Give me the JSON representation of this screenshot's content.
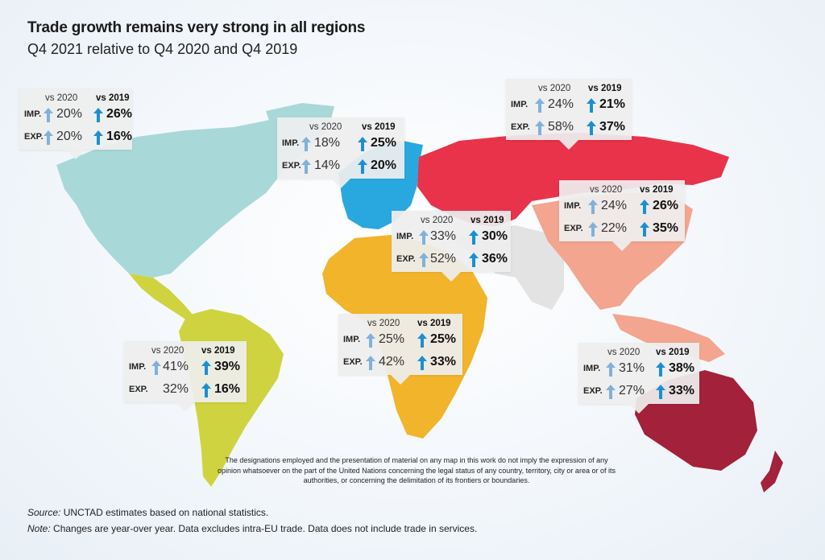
{
  "title": "Trade growth remains very strong in all regions",
  "subtitle": "Q4 2021 relative to Q4 2020 and Q4 2019",
  "headers": {
    "vs2020": "vs 2020",
    "vs2019": "vs 2019"
  },
  "row_labels": {
    "imp": "IMP.",
    "exp": "EXP."
  },
  "colors": {
    "north_america": "#a9d8d9",
    "latin_america": "#cfd33f",
    "europe": "#29a8e0",
    "russia_cis": "#e8334a",
    "africa": "#f2b42b",
    "east_asia": "#f3a58f",
    "oceania": "#a3213a",
    "other": "#e3e3e3",
    "arrow_light": "#7fb1dc",
    "arrow_dark": "#1b8fd2"
  },
  "regions": [
    {
      "id": "north-america",
      "imp_2020": "20%",
      "imp_2019": "26%",
      "exp_2020": "20%",
      "exp_2019": "16%"
    },
    {
      "id": "europe",
      "imp_2020": "18%",
      "imp_2019": "25%",
      "exp_2020": "14%",
      "exp_2019": "20%"
    },
    {
      "id": "russia-cis",
      "imp_2020": "24%",
      "imp_2019": "21%",
      "exp_2020": "58%",
      "exp_2019": "37%"
    },
    {
      "id": "west-asia",
      "imp_2020": "33%",
      "imp_2019": "30%",
      "exp_2020": "52%",
      "exp_2019": "36%"
    },
    {
      "id": "east-asia",
      "imp_2020": "24%",
      "imp_2019": "26%",
      "exp_2020": "22%",
      "exp_2019": "35%"
    },
    {
      "id": "africa",
      "imp_2020": "25%",
      "imp_2019": "25%",
      "exp_2020": "42%",
      "exp_2019": "33%"
    },
    {
      "id": "latin-america",
      "imp_2020": "41%",
      "imp_2019": "39%",
      "exp_2020": "32%",
      "exp_2019": "16%"
    },
    {
      "id": "oceania",
      "imp_2020": "31%",
      "imp_2019": "38%",
      "exp_2020": "27%",
      "exp_2019": "33%"
    }
  ],
  "disclaimer": "The designations employed and the presentation of material on any map in this  work do not imply the expression of any opinion whatsoever on the part of the  United Nations concerning the legal status of any country, territory, city or area or of its authorities, or concerning the delimitation of its frontiers or boundaries.",
  "source_label": "Source:",
  "source_text": " UNCTAD estimates based on national statistics.",
  "note_label": "Note:",
  "note_text": " Changes are year-over year. Data excludes intra-EU trade. Data does not include trade in services."
}
